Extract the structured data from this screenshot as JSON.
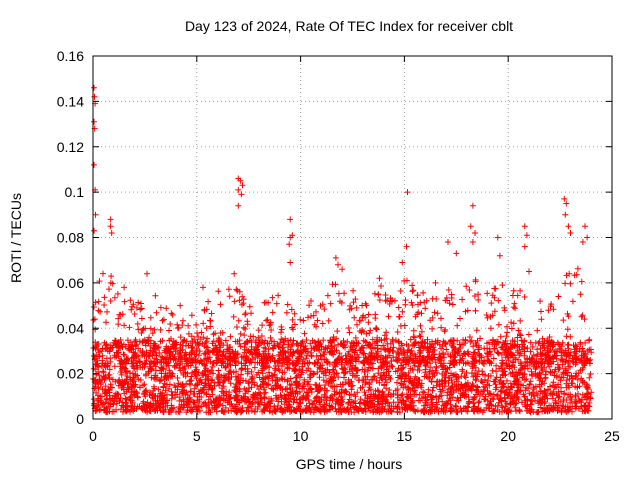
{
  "chart_data": {
    "type": "scatter",
    "title": "Day 123 of 2024, Rate Of TEC Index for receiver cblt",
    "xlabel": "GPS time / hours",
    "ylabel": "ROTI / TECUs",
    "xlim": [
      0,
      25
    ],
    "ylim": [
      0,
      0.16
    ],
    "xticks": [
      0,
      5,
      10,
      15,
      20,
      25
    ],
    "xtick_labels": [
      "0",
      "5",
      "10",
      "15",
      "20",
      "25"
    ],
    "yticks": [
      0,
      0.02,
      0.04,
      0.06,
      0.08,
      0.1,
      0.12,
      0.14,
      0.16
    ],
    "ytick_labels": [
      "0",
      "0.02",
      "0.04",
      "0.06",
      "0.08",
      "0.1",
      "0.12",
      "0.14",
      "0.16"
    ],
    "grid": true,
    "marker": "+",
    "color": "#ff0000",
    "bulk_range": {
      "x": [
        0,
        24
      ],
      "y": [
        0.003,
        0.035
      ]
    },
    "envelope": [
      {
        "x": 0.0,
        "y": 0.05
      },
      {
        "x": 0.3,
        "y": 0.062
      },
      {
        "x": 0.8,
        "y": 0.07
      },
      {
        "x": 1.5,
        "y": 0.052
      },
      {
        "x": 2.5,
        "y": 0.06
      },
      {
        "x": 3.5,
        "y": 0.05
      },
      {
        "x": 4.5,
        "y": 0.045
      },
      {
        "x": 5.5,
        "y": 0.052
      },
      {
        "x": 6.5,
        "y": 0.062
      },
      {
        "x": 7.2,
        "y": 0.058
      },
      {
        "x": 8.0,
        "y": 0.052
      },
      {
        "x": 9.0,
        "y": 0.055
      },
      {
        "x": 10.0,
        "y": 0.045
      },
      {
        "x": 11.0,
        "y": 0.058
      },
      {
        "x": 12.0,
        "y": 0.065
      },
      {
        "x": 13.0,
        "y": 0.05
      },
      {
        "x": 14.0,
        "y": 0.06
      },
      {
        "x": 15.0,
        "y": 0.065
      },
      {
        "x": 16.0,
        "y": 0.055
      },
      {
        "x": 17.0,
        "y": 0.058
      },
      {
        "x": 18.0,
        "y": 0.06
      },
      {
        "x": 19.0,
        "y": 0.065
      },
      {
        "x": 20.0,
        "y": 0.06
      },
      {
        "x": 21.0,
        "y": 0.055
      },
      {
        "x": 22.0,
        "y": 0.05
      },
      {
        "x": 23.0,
        "y": 0.075
      },
      {
        "x": 24.0,
        "y": 0.055
      }
    ],
    "outliers": [
      {
        "x": 0.05,
        "y": 0.146
      },
      {
        "x": 0.07,
        "y": 0.142
      },
      {
        "x": 0.1,
        "y": 0.139
      },
      {
        "x": 0.05,
        "y": 0.131
      },
      {
        "x": 0.08,
        "y": 0.128
      },
      {
        "x": 0.05,
        "y": 0.112
      },
      {
        "x": 0.1,
        "y": 0.101
      },
      {
        "x": 0.05,
        "y": 0.083
      },
      {
        "x": 0.12,
        "y": 0.09
      },
      {
        "x": 0.85,
        "y": 0.088
      },
      {
        "x": 0.85,
        "y": 0.085
      },
      {
        "x": 0.9,
        "y": 0.082
      },
      {
        "x": 7.0,
        "y": 0.106
      },
      {
        "x": 7.1,
        "y": 0.105
      },
      {
        "x": 7.2,
        "y": 0.103
      },
      {
        "x": 7.0,
        "y": 0.101
      },
      {
        "x": 7.15,
        "y": 0.099
      },
      {
        "x": 7.0,
        "y": 0.094
      },
      {
        "x": 9.5,
        "y": 0.088
      },
      {
        "x": 9.6,
        "y": 0.081
      },
      {
        "x": 9.5,
        "y": 0.08
      },
      {
        "x": 9.45,
        "y": 0.077
      },
      {
        "x": 9.5,
        "y": 0.069
      },
      {
        "x": 15.15,
        "y": 0.1
      },
      {
        "x": 15.1,
        "y": 0.076
      },
      {
        "x": 14.9,
        "y": 0.069
      },
      {
        "x": 18.3,
        "y": 0.094
      },
      {
        "x": 18.2,
        "y": 0.085
      },
      {
        "x": 18.4,
        "y": 0.082
      },
      {
        "x": 18.3,
        "y": 0.078
      },
      {
        "x": 17.1,
        "y": 0.078
      },
      {
        "x": 17.5,
        "y": 0.073
      },
      {
        "x": 19.5,
        "y": 0.08
      },
      {
        "x": 19.6,
        "y": 0.072
      },
      {
        "x": 20.8,
        "y": 0.085
      },
      {
        "x": 20.9,
        "y": 0.081
      },
      {
        "x": 20.8,
        "y": 0.076
      },
      {
        "x": 22.7,
        "y": 0.097
      },
      {
        "x": 22.8,
        "y": 0.095
      },
      {
        "x": 22.75,
        "y": 0.09
      },
      {
        "x": 22.9,
        "y": 0.085
      },
      {
        "x": 23.0,
        "y": 0.082
      },
      {
        "x": 23.7,
        "y": 0.085
      },
      {
        "x": 23.8,
        "y": 0.08
      },
      {
        "x": 23.6,
        "y": 0.078
      },
      {
        "x": 11.7,
        "y": 0.071
      },
      {
        "x": 11.8,
        "y": 0.068
      },
      {
        "x": 12.0,
        "y": 0.066
      },
      {
        "x": 2.6,
        "y": 0.064
      },
      {
        "x": 6.8,
        "y": 0.064
      },
      {
        "x": 13.8,
        "y": 0.062
      },
      {
        "x": 16.5,
        "y": 0.06
      },
      {
        "x": 21.0,
        "y": 0.065
      },
      {
        "x": 1.5,
        "y": 0.058
      },
      {
        "x": 4.2,
        "y": 0.05
      },
      {
        "x": 5.3,
        "y": 0.058
      },
      {
        "x": 10.5,
        "y": 0.052
      }
    ]
  }
}
